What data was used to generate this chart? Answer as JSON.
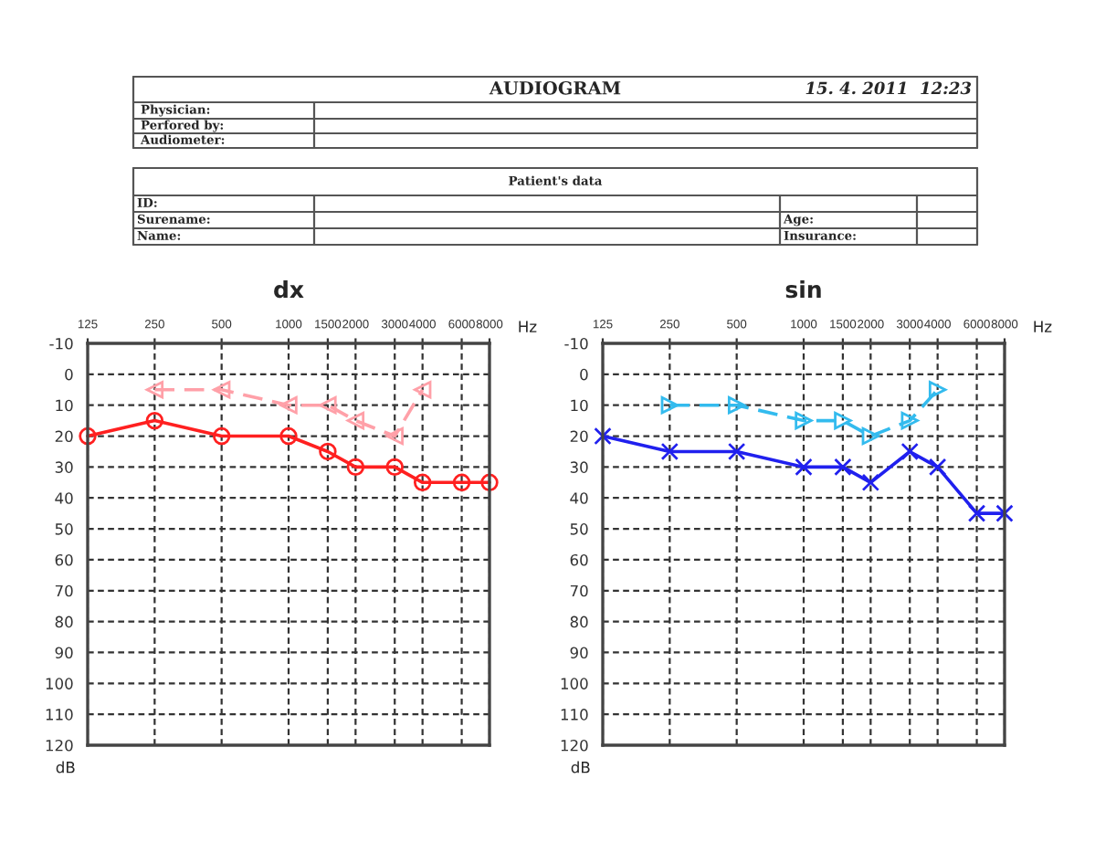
{
  "chart_data": [
    {
      "type": "line",
      "title": "dx",
      "xlabel": "Hz",
      "ylabel": "dB",
      "log": "x",
      "grid": true,
      "x": [
        125,
        250,
        500,
        1000,
        1500,
        2000,
        3000,
        4000,
        6000,
        8000
      ],
      "xlim": [
        125,
        8000
      ],
      "xticks": [
        125,
        250,
        500,
        1000,
        1500,
        2000,
        3000,
        4000,
        6000,
        8000
      ],
      "ylim": [
        120,
        -10
      ],
      "yticks": [
        -10,
        0,
        10,
        20,
        30,
        40,
        50,
        60,
        70,
        80,
        90,
        100,
        110,
        120
      ],
      "series": [
        {
          "color": "#ff2020",
          "marker": "circle",
          "line_style": "solid",
          "values": [
            20,
            15,
            20,
            20,
            25,
            30,
            30,
            35,
            35,
            35
          ]
        },
        {
          "color": "#ffa0a8",
          "marker": "triangle",
          "line_style": "dashed",
          "values": [
            null,
            5,
            5,
            10,
            10,
            15,
            20,
            5,
            null,
            null
          ]
        }
      ],
      "annotations": [
        "AUDIOGRAM",
        "15. 4. 2011  12:23",
        "Physician:",
        "Perfored by:",
        "Audiometer:",
        "Patient's data",
        "ID:",
        "Surename:",
        "Name:",
        "Age:",
        "Insurance:"
      ]
    },
    {
      "type": "line",
      "title": "sin",
      "xlabel": "Hz",
      "ylabel": "dB",
      "log": "x",
      "grid": true,
      "x": [
        125,
        250,
        500,
        1000,
        1500,
        2000,
        3000,
        4000,
        6000,
        8000
      ],
      "xlim": [
        125,
        8000
      ],
      "xticks": [
        125,
        250,
        500,
        1000,
        1500,
        2000,
        3000,
        4000,
        6000,
        8000
      ],
      "ylim": [
        120,
        -10
      ],
      "yticks": [
        -10,
        0,
        10,
        20,
        30,
        40,
        50,
        60,
        70,
        80,
        90,
        100,
        110,
        120
      ],
      "series": [
        {
          "color": "#2020ee",
          "marker": "cross",
          "line_style": "solid",
          "values": [
            20,
            25,
            25,
            30,
            30,
            35,
            25,
            30,
            45,
            45
          ]
        },
        {
          "color": "#33bbee",
          "marker": "triangle",
          "line_style": "dashed",
          "values": [
            null,
            10,
            10,
            15,
            15,
            20,
            15,
            5,
            null,
            null
          ]
        }
      ]
    }
  ]
}
